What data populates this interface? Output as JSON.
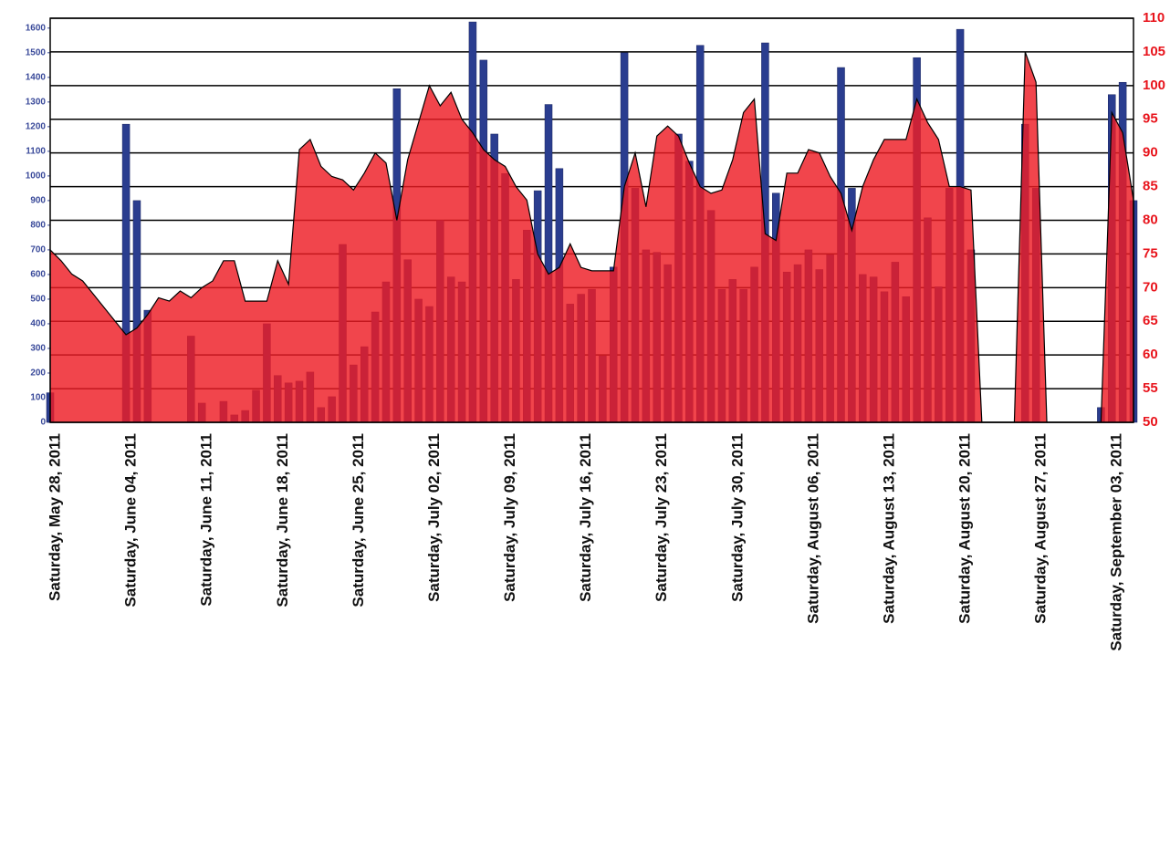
{
  "chart_data": {
    "type": "combo",
    "categories": [
      "Saturday, May 28, 2011",
      null,
      null,
      null,
      null,
      null,
      null,
      "Saturday, June 04, 2011",
      null,
      null,
      null,
      null,
      null,
      null,
      "Saturday, June 11, 2011",
      null,
      null,
      null,
      null,
      null,
      null,
      "Saturday, June 18, 2011",
      null,
      null,
      null,
      null,
      null,
      null,
      "Saturday, June 25, 2011",
      null,
      null,
      null,
      null,
      null,
      null,
      "Saturday, July 02, 2011",
      null,
      null,
      null,
      null,
      null,
      null,
      "Saturday, July 09, 2011",
      null,
      null,
      null,
      null,
      null,
      null,
      "Saturday, July 16, 2011",
      null,
      null,
      null,
      null,
      null,
      null,
      "Saturday, July 23, 2011",
      null,
      null,
      null,
      null,
      null,
      null,
      "Saturday, July 30, 2011",
      null,
      null,
      null,
      null,
      null,
      null,
      "Saturday, August 06, 2011",
      null,
      null,
      null,
      null,
      null,
      null,
      "Saturday, August 13, 2011",
      null,
      null,
      null,
      null,
      null,
      null,
      "Saturday, August 20, 2011",
      null,
      null,
      null,
      null,
      null,
      null,
      "Saturday, August 27, 2011",
      null,
      null,
      null,
      null,
      null,
      null,
      "Saturday, September 03, 2011",
      null,
      null
    ],
    "series": [
      {
        "type": "bar",
        "color": "#2a3d8f",
        "values": [
          120,
          0,
          0,
          0,
          0,
          0,
          0,
          1210,
          900,
          455,
          0,
          0,
          0,
          350,
          78,
          0,
          85,
          30,
          48,
          130,
          400,
          190,
          160,
          167,
          204,
          60,
          104,
          722,
          233,
          307,
          448,
          570,
          1354,
          660,
          500,
          470,
          820,
          590,
          570,
          1625,
          1470,
          1170,
          1010,
          580,
          780,
          940,
          1290,
          1030,
          480,
          520,
          540,
          270,
          630,
          1500,
          950,
          700,
          690,
          640,
          1170,
          1060,
          1530,
          860,
          540,
          580,
          540,
          630,
          1540,
          930,
          610,
          640,
          700,
          620,
          680,
          1440,
          950,
          600,
          590,
          530,
          650,
          510,
          1480,
          830,
          550,
          950,
          1595,
          700,
          0,
          0,
          0,
          0,
          1210,
          950,
          0,
          0,
          0,
          0,
          0,
          60,
          1330,
          1380,
          900
        ]
      },
      {
        "type": "area",
        "axis": "y2",
        "color": "#ee1c24",
        "values": [
          75.6,
          74,
          72,
          71,
          69,
          67,
          65,
          63,
          64,
          66,
          68.5,
          68,
          69.5,
          68.5,
          70,
          71,
          74,
          74,
          68,
          68,
          68,
          74,
          70.5,
          90.5,
          92,
          88,
          86.5,
          86,
          84.5,
          87,
          90,
          88.5,
          80,
          89,
          94.5,
          100,
          97,
          99,
          95,
          93,
          90.5,
          89,
          88,
          85,
          83,
          75,
          72,
          73,
          76.5,
          73,
          72.5,
          72.5,
          72.5,
          85,
          90,
          82,
          92.5,
          94,
          92.5,
          88.5,
          85,
          84,
          84.5,
          89,
          96,
          98,
          78,
          77,
          87,
          87,
          90.5,
          90,
          86.5,
          84,
          78.5,
          85,
          89,
          92,
          92,
          92,
          98,
          94.5,
          92,
          85,
          85,
          84.5,
          50,
          50,
          50,
          50,
          105,
          100.5,
          50,
          50,
          50,
          50,
          50,
          50,
          96,
          93,
          83
        ]
      }
    ],
    "ylim": [
      0,
      1640
    ],
    "yticks": [
      0,
      100,
      200,
      300,
      400,
      500,
      600,
      700,
      800,
      900,
      1000,
      1100,
      1200,
      1300,
      1400,
      1500,
      1600
    ],
    "y2lim": [
      50,
      110
    ],
    "y2ticks": [
      50,
      55,
      60,
      65,
      70,
      75,
      80,
      85,
      90,
      95,
      100,
      105,
      110
    ],
    "grid": true
  }
}
